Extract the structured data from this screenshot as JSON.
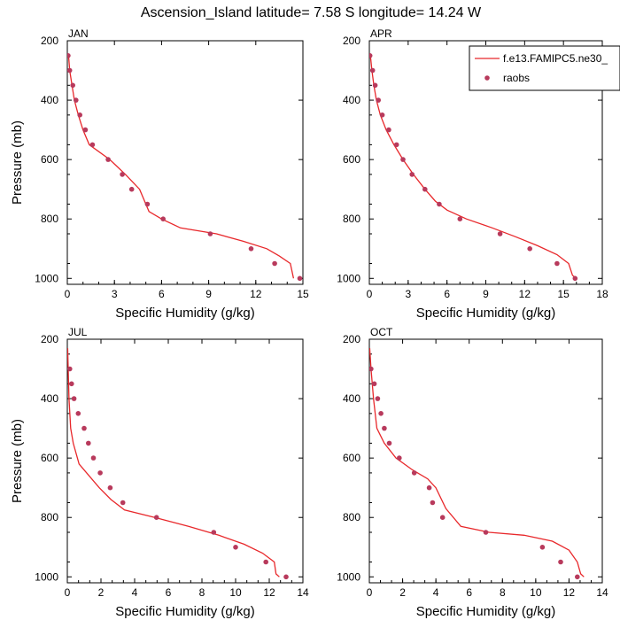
{
  "title": "Ascension_Island  latitude= 7.58 S longitude= 14.24 W",
  "legend": {
    "model_label": "f.e13.FAMIPC5.ne30_",
    "obs_label": "raobs",
    "model_color": "#e8282b",
    "obs_color": "#b83a5c"
  },
  "chart_data": [
    {
      "type": "line",
      "panel": "JAN",
      "xlabel": "Specific Humidity (g/kg)",
      "ylabel": "Pressure (mb)",
      "xlim": [
        0,
        15
      ],
      "ylim": [
        1020,
        200
      ],
      "xticks": [
        0,
        3,
        6,
        9,
        12,
        15
      ],
      "yticks": [
        200,
        400,
        600,
        800,
        1000
      ],
      "show_ylabel": true,
      "show_legend": false,
      "series": [
        {
          "kind": "line",
          "points": [
            [
              0.08,
              250
            ],
            [
              0.15,
              300
            ],
            [
              0.3,
              350
            ],
            [
              0.45,
              400
            ],
            [
              0.7,
              450
            ],
            [
              1.0,
              500
            ],
            [
              1.4,
              550
            ],
            [
              2.7,
              600
            ],
            [
              3.7,
              650
            ],
            [
              4.6,
              700
            ],
            [
              5.2,
              775
            ],
            [
              6.0,
              800
            ],
            [
              7.2,
              830
            ],
            [
              9.5,
              850
            ],
            [
              11.2,
              875
            ],
            [
              12.7,
              900
            ],
            [
              13.5,
              925
            ],
            [
              14.2,
              950
            ],
            [
              14.4,
              1000
            ]
          ]
        },
        {
          "kind": "points",
          "points": [
            [
              0.05,
              250
            ],
            [
              0.15,
              300
            ],
            [
              0.35,
              350
            ],
            [
              0.55,
              400
            ],
            [
              0.8,
              450
            ],
            [
              1.15,
              500
            ],
            [
              1.6,
              550
            ],
            [
              2.6,
              600
            ],
            [
              3.5,
              650
            ],
            [
              4.1,
              700
            ],
            [
              5.1,
              750
            ],
            [
              6.1,
              800
            ],
            [
              9.1,
              850
            ],
            [
              11.7,
              900
            ],
            [
              13.2,
              950
            ],
            [
              14.8,
              1000
            ]
          ]
        }
      ]
    },
    {
      "type": "line",
      "panel": "APR",
      "xlabel": "Specific Humidity (g/kg)",
      "ylabel": "",
      "xlim": [
        0,
        18
      ],
      "ylim": [
        1020,
        200
      ],
      "xticks": [
        0,
        3,
        6,
        9,
        12,
        15,
        18
      ],
      "yticks": [
        200,
        400,
        600,
        800,
        1000
      ],
      "show_ylabel": false,
      "show_legend": true,
      "series": [
        {
          "kind": "line",
          "points": [
            [
              0.08,
              250
            ],
            [
              0.2,
              300
            ],
            [
              0.35,
              350
            ],
            [
              0.55,
              400
            ],
            [
              0.85,
              450
            ],
            [
              1.3,
              500
            ],
            [
              1.9,
              550
            ],
            [
              2.6,
              600
            ],
            [
              3.4,
              650
            ],
            [
              4.3,
              700
            ],
            [
              5.1,
              740
            ],
            [
              6.0,
              770
            ],
            [
              7.5,
              800
            ],
            [
              9.5,
              830
            ],
            [
              11.3,
              860
            ],
            [
              13.0,
              890
            ],
            [
              14.5,
              920
            ],
            [
              15.4,
              950
            ],
            [
              15.7,
              990
            ],
            [
              16.0,
              1000
            ]
          ]
        },
        {
          "kind": "points",
          "points": [
            [
              0.05,
              250
            ],
            [
              0.25,
              300
            ],
            [
              0.45,
              350
            ],
            [
              0.7,
              400
            ],
            [
              1.0,
              450
            ],
            [
              1.5,
              500
            ],
            [
              2.1,
              550
            ],
            [
              2.6,
              600
            ],
            [
              3.3,
              650
            ],
            [
              4.3,
              700
            ],
            [
              5.4,
              750
            ],
            [
              7.0,
              800
            ],
            [
              10.1,
              850
            ],
            [
              12.4,
              900
            ],
            [
              14.5,
              950
            ],
            [
              15.9,
              1000
            ]
          ]
        }
      ]
    },
    {
      "type": "line",
      "panel": "JUL",
      "xlabel": "Specific Humidity (g/kg)",
      "ylabel": "Pressure (mb)",
      "xlim": [
        0,
        14
      ],
      "ylim": [
        1020,
        200
      ],
      "xticks": [
        0,
        2,
        4,
        6,
        8,
        10,
        12,
        14
      ],
      "yticks": [
        200,
        400,
        600,
        800,
        1000
      ],
      "show_ylabel": true,
      "show_legend": false,
      "series": [
        {
          "kind": "line",
          "points": [
            [
              0.02,
              230
            ],
            [
              0.05,
              300
            ],
            [
              0.1,
              400
            ],
            [
              0.2,
              500
            ],
            [
              0.35,
              550
            ],
            [
              0.7,
              620
            ],
            [
              1.3,
              660
            ],
            [
              1.9,
              700
            ],
            [
              2.6,
              740
            ],
            [
              3.4,
              775
            ],
            [
              5.2,
              800
            ],
            [
              7.2,
              830
            ],
            [
              9.0,
              860
            ],
            [
              10.5,
              890
            ],
            [
              11.6,
              920
            ],
            [
              12.3,
              950
            ],
            [
              12.4,
              990
            ],
            [
              12.6,
              1000
            ]
          ]
        },
        {
          "kind": "points",
          "points": [
            [
              0.15,
              300
            ],
            [
              0.25,
              350
            ],
            [
              0.4,
              400
            ],
            [
              0.65,
              450
            ],
            [
              1.0,
              500
            ],
            [
              1.25,
              550
            ],
            [
              1.55,
              600
            ],
            [
              1.95,
              650
            ],
            [
              2.55,
              700
            ],
            [
              3.3,
              750
            ],
            [
              5.3,
              800
            ],
            [
              8.7,
              850
            ],
            [
              10.0,
              900
            ],
            [
              11.8,
              950
            ],
            [
              13.0,
              1000
            ]
          ]
        }
      ]
    },
    {
      "type": "line",
      "panel": "OCT",
      "xlabel": "Specific Humidity (g/kg)",
      "ylabel": "",
      "xlim": [
        0,
        14
      ],
      "ylim": [
        1020,
        200
      ],
      "xticks": [
        0,
        2,
        4,
        6,
        8,
        10,
        12,
        14
      ],
      "yticks": [
        200,
        400,
        600,
        800,
        1000
      ],
      "show_ylabel": false,
      "show_legend": false,
      "series": [
        {
          "kind": "line",
          "points": [
            [
              0.02,
              230
            ],
            [
              0.1,
              300
            ],
            [
              0.25,
              400
            ],
            [
              0.45,
              500
            ],
            [
              0.9,
              550
            ],
            [
              1.6,
              600
            ],
            [
              2.6,
              640
            ],
            [
              3.5,
              670
            ],
            [
              4.0,
              700
            ],
            [
              4.6,
              770
            ],
            [
              5.5,
              830
            ],
            [
              7.2,
              850
            ],
            [
              9.3,
              860
            ],
            [
              11.0,
              880
            ],
            [
              12.0,
              910
            ],
            [
              12.5,
              950
            ],
            [
              12.7,
              990
            ],
            [
              12.9,
              1000
            ]
          ]
        },
        {
          "kind": "points",
          "points": [
            [
              0.1,
              300
            ],
            [
              0.3,
              350
            ],
            [
              0.5,
              400
            ],
            [
              0.7,
              450
            ],
            [
              0.9,
              500
            ],
            [
              1.2,
              550
            ],
            [
              1.8,
              600
            ],
            [
              2.7,
              650
            ],
            [
              3.6,
              700
            ],
            [
              3.8,
              750
            ],
            [
              4.4,
              800
            ],
            [
              7.0,
              850
            ],
            [
              10.4,
              900
            ],
            [
              11.5,
              950
            ],
            [
              12.5,
              1000
            ]
          ]
        }
      ]
    }
  ]
}
